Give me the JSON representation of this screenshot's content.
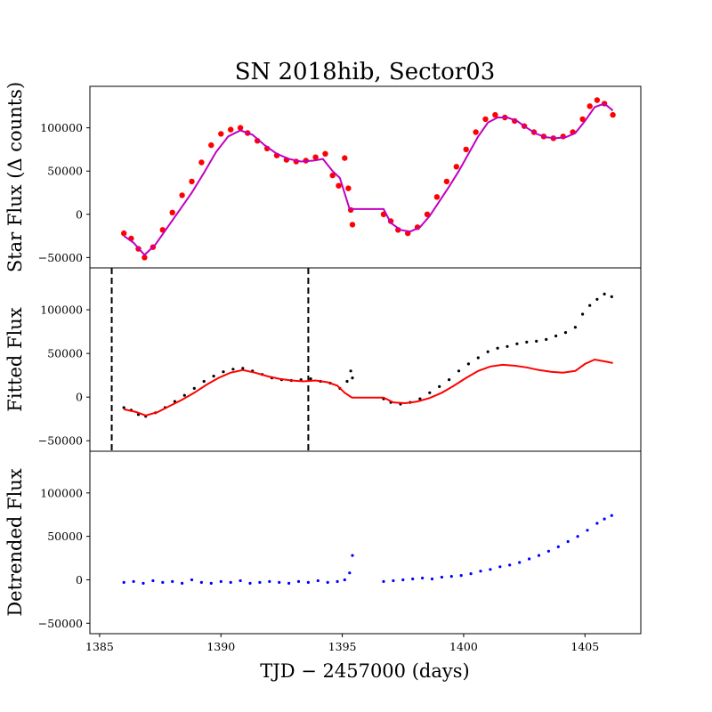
{
  "chart_data": {
    "type": "scatter",
    "title": "SN 2018hib, Sector03",
    "xlabel": "TJD − 2457000 (days)",
    "xlim": [
      1384.6,
      1407.3
    ],
    "x_ticks": [
      1385,
      1390,
      1395,
      1400,
      1405
    ],
    "x_tick_labels": [
      "1385",
      "1390",
      "1395",
      "1400",
      "1405"
    ],
    "ylim": [
      -62000,
      148000
    ],
    "y_ticks": [
      -50000,
      0,
      50000,
      100000
    ],
    "y_tick_labels": [
      "−50000",
      "0",
      "50000",
      "100000"
    ],
    "grid": false,
    "panels": [
      {
        "id": "star",
        "ylabel": "Star Flux (Δ counts)",
        "series": [
          {
            "kind": "points",
            "color": "#ff0000",
            "marker_size": "large",
            "x": [
              1386.0,
              1386.3,
              1386.6,
              1386.85,
              1387.2,
              1387.6,
              1388.0,
              1388.4,
              1388.8,
              1389.2,
              1389.6,
              1390.0,
              1390.4,
              1390.8,
              1391.1,
              1391.5,
              1391.9,
              1392.3,
              1392.7,
              1393.1,
              1393.5,
              1393.9,
              1394.3,
              1394.6,
              1394.85,
              1395.1,
              1395.25,
              1395.35,
              1395.42,
              1396.7,
              1397.0,
              1397.3,
              1397.7,
              1398.1,
              1398.5,
              1398.9,
              1399.3,
              1399.7,
              1400.1,
              1400.5,
              1400.9,
              1401.3,
              1401.7,
              1402.1,
              1402.5,
              1402.9,
              1403.3,
              1403.7,
              1404.1,
              1404.5,
              1404.9,
              1405.2,
              1405.5,
              1405.8,
              1406.15
            ],
            "y": [
              -22000,
              -28000,
              -40000,
              -50000,
              -38000,
              -18000,
              2000,
              22000,
              38000,
              60000,
              80000,
              93000,
              98000,
              100000,
              94000,
              85000,
              76000,
              68000,
              63000,
              61000,
              62000,
              66000,
              70000,
              45000,
              33000,
              65000,
              30000,
              5000,
              -12000,
              0,
              -8000,
              -18000,
              -22000,
              -15000,
              0,
              20000,
              38000,
              55000,
              75000,
              95000,
              110000,
              115000,
              112000,
              108000,
              102000,
              95000,
              90000,
              88000,
              90000,
              95000,
              110000,
              125000,
              132000,
              128000,
              115000
            ]
          },
          {
            "kind": "line",
            "color": "#c000c0",
            "x": [
              1386.0,
              1386.4,
              1386.85,
              1387.3,
              1387.8,
              1388.3,
              1388.8,
              1389.3,
              1389.8,
              1390.3,
              1390.8,
              1391.3,
              1391.8,
              1392.3,
              1392.8,
              1393.3,
              1393.8,
              1394.2,
              1394.6,
              1394.9,
              1395.3,
              1396.7,
              1397.0,
              1397.4,
              1397.8,
              1398.2,
              1398.6,
              1399.0,
              1399.4,
              1399.8,
              1400.2,
              1400.6,
              1401.0,
              1401.4,
              1401.8,
              1402.2,
              1402.6,
              1403.0,
              1403.4,
              1403.8,
              1404.2,
              1404.6,
              1405.0,
              1405.4,
              1405.8,
              1406.15
            ],
            "y": [
              -25000,
              -33000,
              -47000,
              -35000,
              -15000,
              5000,
              25000,
              48000,
              72000,
              90000,
              97000,
              92000,
              80000,
              70000,
              64000,
              61000,
              62000,
              64000,
              50000,
              42000,
              6000,
              6000,
              -10000,
              -18000,
              -20000,
              -15000,
              -2000,
              15000,
              32000,
              50000,
              70000,
              90000,
              106000,
              112000,
              112000,
              108000,
              100000,
              93000,
              89000,
              88000,
              89000,
              94000,
              108000,
              124000,
              128000,
              120000
            ]
          }
        ]
      },
      {
        "id": "fitted",
        "ylabel": "Fitted Flux",
        "vlines": [
          1385.5,
          1393.6
        ],
        "series": [
          {
            "kind": "points",
            "color": "#000000",
            "marker_size": "small",
            "x": [
              1386.0,
              1386.3,
              1386.6,
              1386.9,
              1387.3,
              1387.7,
              1388.1,
              1388.5,
              1388.9,
              1389.3,
              1389.7,
              1390.1,
              1390.5,
              1390.9,
              1391.3,
              1391.7,
              1392.1,
              1392.5,
              1392.9,
              1393.3,
              1393.7,
              1394.1,
              1394.5,
              1394.9,
              1395.2,
              1395.35,
              1395.42,
              1396.7,
              1397.0,
              1397.4,
              1397.8,
              1398.2,
              1398.6,
              1399.0,
              1399.4,
              1399.8,
              1400.2,
              1400.6,
              1401.0,
              1401.4,
              1401.8,
              1402.2,
              1402.6,
              1403.0,
              1403.4,
              1403.8,
              1404.2,
              1404.6,
              1404.9,
              1405.2,
              1405.5,
              1405.8,
              1406.1
            ],
            "y": [
              -12000,
              -15000,
              -20000,
              -22000,
              -18000,
              -12000,
              -5000,
              2000,
              10000,
              18000,
              24000,
              29000,
              32000,
              33000,
              30000,
              26000,
              22000,
              20000,
              19000,
              20000,
              21000,
              18000,
              16000,
              10000,
              18000,
              30000,
              22000,
              -2000,
              -6000,
              -8000,
              -6000,
              -2000,
              5000,
              12000,
              20000,
              30000,
              38000,
              45000,
              52000,
              56000,
              58000,
              61000,
              63000,
              64000,
              66000,
              70000,
              74000,
              80000,
              95000,
              105000,
              112000,
              118000,
              115000
            ]
          },
          {
            "kind": "line",
            "color": "#ff0000",
            "x": [
              1386.0,
              1386.5,
              1386.9,
              1387.4,
              1387.9,
              1388.4,
              1388.9,
              1389.4,
              1389.9,
              1390.4,
              1390.9,
              1391.4,
              1391.9,
              1392.4,
              1392.9,
              1393.4,
              1393.9,
              1394.4,
              1394.8,
              1395.1,
              1395.4,
              1396.7,
              1397.1,
              1397.6,
              1398.1,
              1398.6,
              1399.1,
              1399.6,
              1400.1,
              1400.6,
              1401.1,
              1401.6,
              1402.1,
              1402.6,
              1403.1,
              1403.6,
              1404.1,
              1404.6,
              1405.0,
              1405.4,
              1405.8,
              1406.15
            ],
            "y": [
              -14000,
              -17000,
              -21000,
              -17000,
              -10000,
              -3000,
              5000,
              14000,
              22000,
              28000,
              31000,
              28000,
              24000,
              21000,
              19000,
              18000,
              19000,
              17000,
              13000,
              5000,
              -500,
              -500,
              -6000,
              -7000,
              -5000,
              -1000,
              5000,
              13000,
              22000,
              30000,
              35000,
              37000,
              36000,
              34000,
              31000,
              29000,
              28000,
              30000,
              38000,
              43000,
              41000,
              39000
            ]
          }
        ]
      },
      {
        "id": "detrended",
        "ylabel": "Detrended Flux",
        "series": [
          {
            "kind": "points",
            "color": "#0000ff",
            "marker_size": "small",
            "x": [
              1386.0,
              1386.4,
              1386.8,
              1387.2,
              1387.6,
              1388.0,
              1388.4,
              1388.8,
              1389.2,
              1389.6,
              1390.0,
              1390.4,
              1390.8,
              1391.2,
              1391.6,
              1392.0,
              1392.4,
              1392.8,
              1393.2,
              1393.6,
              1394.0,
              1394.4,
              1394.8,
              1395.1,
              1395.3,
              1395.42,
              1396.7,
              1397.1,
              1397.5,
              1397.9,
              1398.3,
              1398.7,
              1399.1,
              1399.5,
              1399.9,
              1400.3,
              1400.7,
              1401.1,
              1401.5,
              1401.9,
              1402.3,
              1402.7,
              1403.1,
              1403.5,
              1403.9,
              1404.3,
              1404.7,
              1405.1,
              1405.5,
              1405.8,
              1406.1
            ],
            "y": [
              -3000,
              -2000,
              -4000,
              -1000,
              -3000,
              -2000,
              -4000,
              0,
              -3000,
              -4000,
              -2000,
              -3000,
              -1000,
              -4000,
              -3000,
              -2000,
              -3000,
              -4000,
              -2000,
              -3000,
              -1000,
              -3000,
              -2000,
              0,
              8000,
              28000,
              -2000,
              -1000,
              0,
              1000,
              2000,
              1000,
              3000,
              4000,
              5000,
              7000,
              10000,
              12000,
              15000,
              17000,
              20000,
              24000,
              28000,
              33000,
              38000,
              44000,
              50000,
              57000,
              65000,
              70000,
              74000
            ]
          }
        ]
      }
    ]
  }
}
